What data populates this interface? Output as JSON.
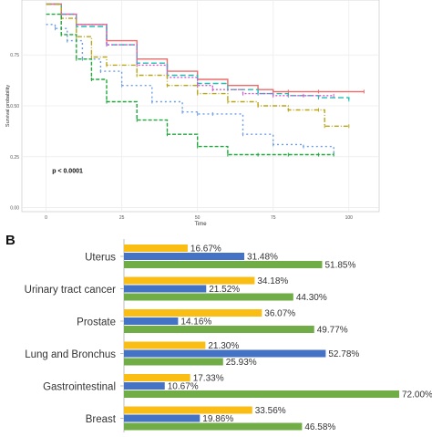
{
  "chart_data": [
    {
      "type": "line",
      "xlabel": "Time",
      "ylabel": "Survival probability",
      "xlim": [
        -8,
        110
      ],
      "ylim": [
        -0.02,
        1.02
      ],
      "x_ticks": [
        "0",
        "25",
        "50",
        "75",
        "100"
      ],
      "x_tick_values": [
        0,
        25,
        50,
        75,
        100
      ],
      "y_ticks": [
        "0.00",
        "0.25",
        "0.50",
        "0.75"
      ],
      "y_tick_values": [
        0.0,
        0.25,
        0.5,
        0.75
      ],
      "grid": true,
      "annotation": "p < 0.0001",
      "series": [
        {
          "color": "#f06a6a",
          "dash": "",
          "x": [
            0,
            5,
            10,
            20,
            30,
            40,
            50,
            60,
            70,
            75,
            80,
            90,
            105
          ],
          "y": [
            1.0,
            0.95,
            0.9,
            0.82,
            0.73,
            0.67,
            0.63,
            0.6,
            0.58,
            0.57,
            0.57,
            0.57,
            0.57
          ]
        },
        {
          "color": "#1fbfb6",
          "dash": "6,3",
          "x": [
            0,
            5,
            10,
            20,
            30,
            40,
            50,
            60,
            70,
            80,
            90,
            100
          ],
          "y": [
            1.0,
            0.95,
            0.89,
            0.8,
            0.71,
            0.65,
            0.61,
            0.58,
            0.56,
            0.55,
            0.54,
            0.53
          ]
        },
        {
          "color": "#d459d1",
          "dash": "2,2",
          "x": [
            0,
            5,
            10,
            20,
            30,
            40,
            50,
            55,
            65,
            75,
            85,
            95
          ],
          "y": [
            1.0,
            0.95,
            0.9,
            0.8,
            0.7,
            0.64,
            0.6,
            0.58,
            0.56,
            0.55,
            0.55,
            0.55
          ]
        },
        {
          "color": "#b9a61a",
          "dash": "5,2,1,2",
          "x": [
            0,
            5,
            10,
            15,
            20,
            30,
            40,
            50,
            60,
            70,
            80,
            90,
            92,
            100
          ],
          "y": [
            1.0,
            0.93,
            0.84,
            0.74,
            0.7,
            0.65,
            0.6,
            0.56,
            0.52,
            0.5,
            0.48,
            0.48,
            0.4,
            0.4
          ]
        },
        {
          "color": "#6e9ee6",
          "dash": "2,3",
          "x": [
            0,
            3,
            7,
            12,
            18,
            25,
            35,
            45,
            50,
            55,
            65,
            75,
            85,
            95
          ],
          "y": [
            0.9,
            0.88,
            0.82,
            0.73,
            0.67,
            0.6,
            0.52,
            0.47,
            0.46,
            0.46,
            0.36,
            0.31,
            0.3,
            0.27
          ]
        },
        {
          "color": "#1fa83c",
          "dash": "4,2",
          "x": [
            0,
            5,
            10,
            15,
            20,
            30,
            40,
            50,
            60,
            70,
            80,
            90,
            95
          ],
          "y": [
            0.95,
            0.85,
            0.73,
            0.63,
            0.52,
            0.43,
            0.36,
            0.3,
            0.26,
            0.26,
            0.26,
            0.26,
            0.26
          ]
        }
      ]
    },
    {
      "type": "bar",
      "panel_label": "B",
      "orientation": "horizontal",
      "categories": [
        "Uterus",
        "Urinary tract cancer",
        "Prostate",
        "Lung and Bronchus",
        "Gastrointestinal",
        "Breast"
      ],
      "xlim": [
        0,
        72
      ],
      "series": [
        {
          "color": "#f9bd14",
          "values": [
            16.67,
            34.18,
            36.07,
            21.3,
            17.33,
            33.56
          ],
          "labels": [
            "16.67%",
            "34.18%",
            "36.07%",
            "21.30%",
            "17.33%",
            "33.56%"
          ]
        },
        {
          "color": "#4472c4",
          "values": [
            31.48,
            21.52,
            14.16,
            52.78,
            10.67,
            19.86
          ],
          "labels": [
            "31.48%",
            "21.52%",
            "14.16%",
            "52.78%",
            "10.67%",
            "19.86%"
          ]
        },
        {
          "color": "#70ad47",
          "values": [
            51.85,
            44.3,
            49.77,
            25.93,
            72.0,
            46.58
          ],
          "labels": [
            "51.85%",
            "44.30%",
            "49.77%",
            "25.93%",
            "72.00%",
            "46.58%"
          ]
        }
      ]
    }
  ]
}
